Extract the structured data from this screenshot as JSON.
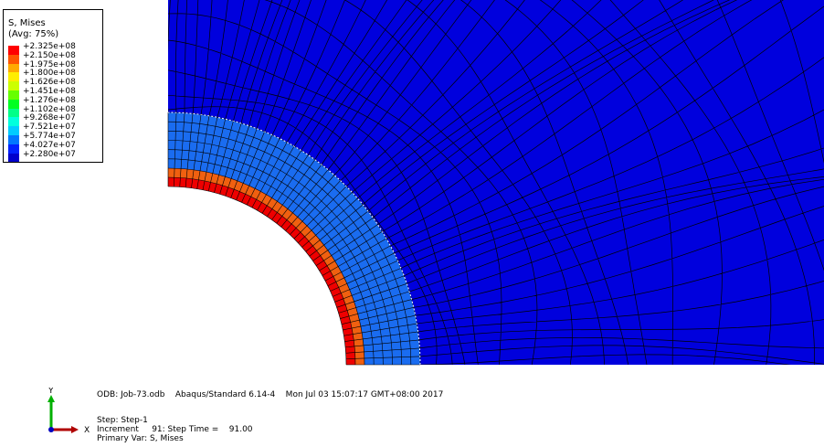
{
  "legend": {
    "title_line1": "S, Mises",
    "title_line2": "(Avg: 75%)",
    "values": [
      "+2.325e+08",
      "+2.150e+08",
      "+1.975e+08",
      "+1.800e+08",
      "+1.626e+08",
      "+1.451e+08",
      "+1.276e+08",
      "+1.102e+08",
      "+9.268e+07",
      "+7.521e+07",
      "+5.774e+07",
      "+4.027e+07",
      "+2.280e+07"
    ],
    "colors": [
      "#ff0000",
      "#ff5500",
      "#ffaa00",
      "#ffee00",
      "#ccff00",
      "#66ff00",
      "#00ff22",
      "#00ff88",
      "#00ffdd",
      "#00ccff",
      "#0077ff",
      "#0022ff",
      "#0000cc"
    ]
  },
  "model_colors": {
    "background_region": "#0000dd",
    "outer_ring": "#1a6cf0",
    "middle_ring": "#f06010",
    "inner_ring": "#ee0000",
    "mesh_lines": "#000000"
  },
  "info": {
    "odb_line": "ODB: Job-73.odb    Abaqus/Standard 6.14-4    Mon Jul 03 15:07:17 GMT+08:00 2017",
    "step_line": "Step: Step-1",
    "increment_line": "Increment     91: Step Time =    91.00",
    "primary_var_line": "Primary Var: S, Mises"
  },
  "triad": {
    "x_label": "X",
    "y_label": "Y",
    "x_color": "#b00000",
    "y_color": "#00b000",
    "z_color": "#0000c0"
  }
}
